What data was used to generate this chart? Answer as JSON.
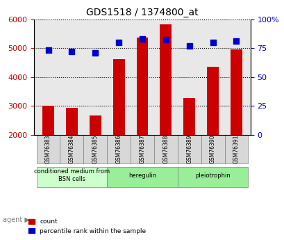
{
  "title": "GDS1518 / 1374800_at",
  "samples": [
    "GSM76383",
    "GSM76384",
    "GSM76385",
    "GSM76386",
    "GSM76387",
    "GSM76388",
    "GSM76389",
    "GSM76390",
    "GSM76391"
  ],
  "counts": [
    3000,
    2920,
    2670,
    4620,
    5370,
    5820,
    3280,
    4350,
    4960
  ],
  "percentiles": [
    73,
    72,
    71,
    80,
    83,
    82,
    77,
    80,
    81
  ],
  "ylim_left": [
    2000,
    6000
  ],
  "ylim_right": [
    0,
    100
  ],
  "yticks_left": [
    2000,
    3000,
    4000,
    5000,
    6000
  ],
  "yticks_right": [
    0,
    25,
    50,
    75,
    100
  ],
  "bar_color": "#cc0000",
  "dot_color": "#0000cc",
  "groups": [
    {
      "label": "conditioned medium from\nBSN cells",
      "start": 0,
      "end": 3,
      "color": "#ccffcc"
    },
    {
      "label": "heregulin",
      "start": 3,
      "end": 6,
      "color": "#99ee99"
    },
    {
      "label": "pleiotrophin",
      "start": 6,
      "end": 9,
      "color": "#99ee99"
    }
  ],
  "group_dividers": [
    3,
    6
  ],
  "xlabel": "agent",
  "legend_count_color": "#cc0000",
  "legend_dot_color": "#0000cc",
  "background_color": "#e8e8e8",
  "plot_bg_color": "#ffffff",
  "grid_color": "#aaaaaa"
}
